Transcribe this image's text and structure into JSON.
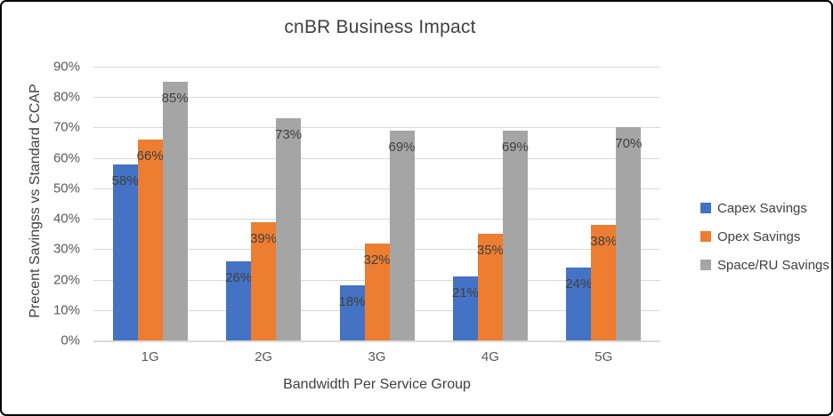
{
  "chart_data": {
    "type": "bar",
    "title": "cnBR Business Impact",
    "xlabel": "Bandwidth Per Service Group",
    "ylabel": "Precent Savingss vs Standard CCAP",
    "categories": [
      "1G",
      "2G",
      "3G",
      "4G",
      "5G"
    ],
    "series": [
      {
        "name": "Capex Savings",
        "color": "#4472c4",
        "values": [
          58,
          26,
          18,
          21,
          24
        ]
      },
      {
        "name": "Opex Savings",
        "color": "#ed7d31",
        "values": [
          66,
          39,
          32,
          35,
          38
        ]
      },
      {
        "name": "Space/RU Savings",
        "color": "#a5a5a5",
        "values": [
          85,
          73,
          69,
          69,
          70
        ]
      }
    ],
    "ylim": [
      0,
      90
    ],
    "ytick_step": 10,
    "ytick_suffix": "%",
    "data_label_suffix": "%",
    "grid": true,
    "legend_position": "right"
  },
  "colors": {
    "frame_border": "#000000",
    "background": "#ffffff",
    "gridline": "#d9d9d9",
    "axis_line": "#d9d9d9",
    "tick_text": "#595959",
    "title_text": "#404040",
    "data_label_text": "#404040",
    "legend_text": "#404040"
  }
}
